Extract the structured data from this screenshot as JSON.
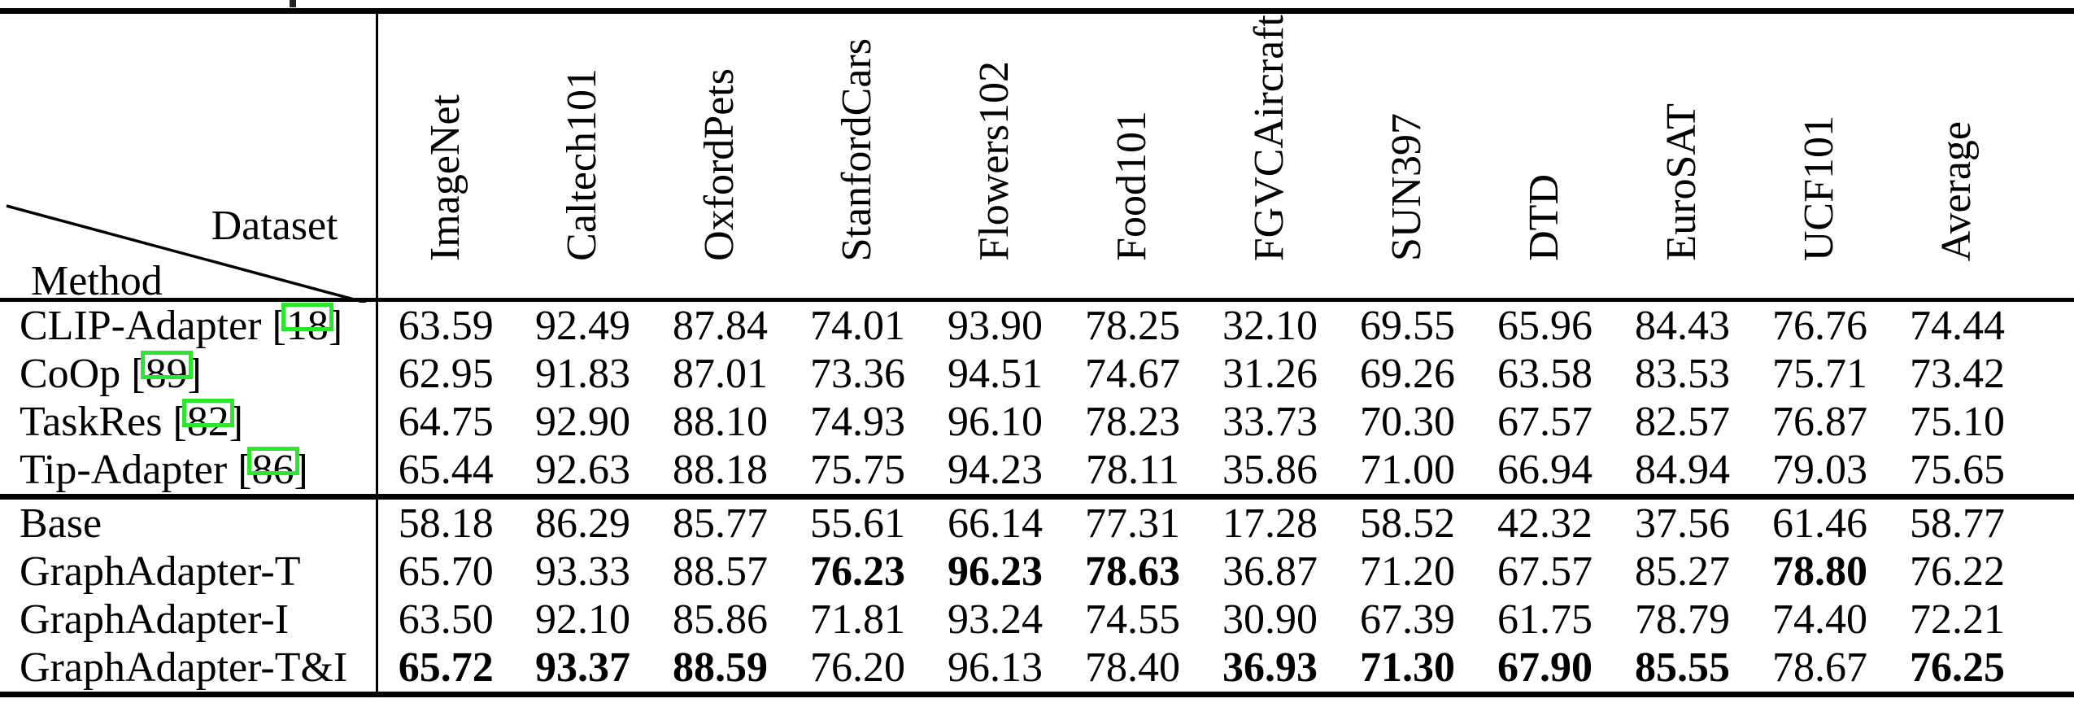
{
  "page": {
    "background": "#ffffff",
    "text_color": "#000000",
    "citation_box_color": "#2ee52e"
  },
  "table": {
    "corner": {
      "dataset_label": "Dataset",
      "method_label": "Method"
    },
    "columns": [
      "ImageNet",
      "Caltech101",
      "OxfordPets",
      "StanfordCars",
      "Flowers102",
      "Food101",
      "FGVCAircraft",
      "SUN397",
      "DTD",
      "EuroSAT",
      "UCF101",
      "Average"
    ],
    "groups": [
      {
        "name": "prior-methods",
        "rows": [
          {
            "method": "CLIP-Adapter",
            "cite": "18",
            "values": [
              "63.59",
              "92.49",
              "87.84",
              "74.01",
              "93.90",
              "78.25",
              "32.10",
              "69.55",
              "65.96",
              "84.43",
              "76.76",
              "74.44"
            ],
            "bold": []
          },
          {
            "method": "CoOp",
            "cite": "89",
            "values": [
              "62.95",
              "91.83",
              "87.01",
              "73.36",
              "94.51",
              "74.67",
              "31.26",
              "69.26",
              "63.58",
              "83.53",
              "75.71",
              "73.42"
            ],
            "bold": []
          },
          {
            "method": "TaskRes",
            "cite": "82",
            "values": [
              "64.75",
              "92.90",
              "88.10",
              "74.93",
              "96.10",
              "78.23",
              "33.73",
              "70.30",
              "67.57",
              "82.57",
              "76.87",
              "75.10"
            ],
            "bold": []
          },
          {
            "method": "Tip-Adapter",
            "cite": "86",
            "values": [
              "65.44",
              "92.63",
              "88.18",
              "75.75",
              "94.23",
              "78.11",
              "35.86",
              "71.00",
              "66.94",
              "84.94",
              "79.03",
              "75.65"
            ],
            "bold": []
          }
        ]
      },
      {
        "name": "graphadapter-methods",
        "rows": [
          {
            "method": "Base",
            "cite": null,
            "values": [
              "58.18",
              "86.29",
              "85.77",
              "55.61",
              "66.14",
              "77.31",
              "17.28",
              "58.52",
              "42.32",
              "37.56",
              "61.46",
              "58.77"
            ],
            "bold": []
          },
          {
            "method": "GraphAdapter-T",
            "cite": null,
            "values": [
              "65.70",
              "93.33",
              "88.57",
              "76.23",
              "96.23",
              "78.63",
              "36.87",
              "71.20",
              "67.57",
              "85.27",
              "78.80",
              "76.22"
            ],
            "bold": [
              3,
              4,
              5,
              10
            ]
          },
          {
            "method": "GraphAdapter-I",
            "cite": null,
            "values": [
              "63.50",
              "92.10",
              "85.86",
              "71.81",
              "93.24",
              "74.55",
              "30.90",
              "67.39",
              "61.75",
              "78.79",
              "74.40",
              "72.21"
            ],
            "bold": []
          },
          {
            "method": "GraphAdapter-T&I",
            "cite": null,
            "values": [
              "65.72",
              "93.37",
              "88.59",
              "76.20",
              "96.13",
              "78.40",
              "36.93",
              "71.30",
              "67.90",
              "85.55",
              "78.67",
              "76.25"
            ],
            "bold": [
              0,
              1,
              2,
              6,
              7,
              8,
              9,
              11
            ]
          }
        ]
      }
    ]
  }
}
